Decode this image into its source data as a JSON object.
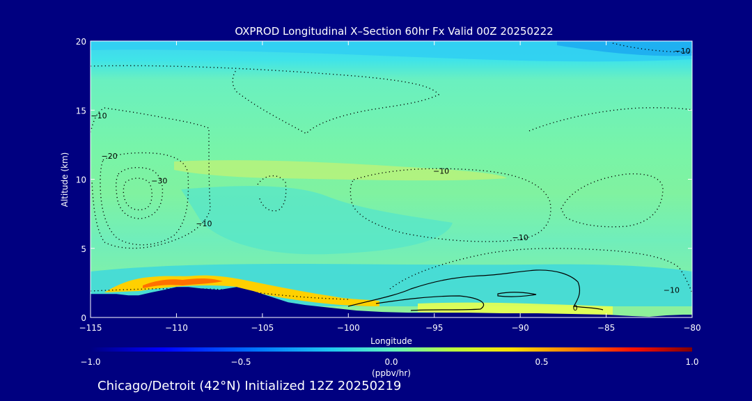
{
  "chart_data": {
    "type": "heatmap",
    "title": "OXPROD Longitudinal X–Section 60hr  Fx Valid 00Z 20250222",
    "xlabel": "Longitude",
    "ylabel": "Altitude (km)",
    "xlim": [
      -115,
      -80
    ],
    "ylim": [
      0,
      20
    ],
    "x_ticks": [
      -115,
      -110,
      -105,
      -100,
      -95,
      -90,
      -85,
      -80
    ],
    "x_tick_labels": [
      "−115",
      "−110",
      "−105",
      "−100",
      "−95",
      "−90",
      "−85",
      "−80"
    ],
    "y_ticks": [
      0,
      5,
      10,
      15,
      20
    ],
    "y_tick_labels": [
      "0",
      "5",
      "10",
      "15",
      "20"
    ],
    "colorbar": {
      "min": -1.0,
      "max": 1.0,
      "ticks": [
        -1.0,
        -0.5,
        0.0,
        0.5,
        1.0
      ],
      "tick_labels": [
        "−1.0",
        "−0.5",
        "0.0",
        "0.5",
        "1.0"
      ],
      "units": "(ppbv/hr)",
      "colors": [
        "#000080",
        "#0000ff",
        "#00a0ff",
        "#40e0e0",
        "#80ff80",
        "#ffff00",
        "#ff8000",
        "#ff0000",
        "#800000"
      ]
    },
    "contour_labels": [
      {
        "text": "−10",
        "lon": -79.8,
        "alt": 19.3
      },
      {
        "text": "−10",
        "lon": -114.6,
        "alt": 14.6
      },
      {
        "text": "−20",
        "lon": -113.9,
        "alt": 11.7
      },
      {
        "text": "−30",
        "lon": -111,
        "alt": 9.9
      },
      {
        "text": "−10",
        "lon": -108.4,
        "alt": 6.8
      },
      {
        "text": "−10",
        "lon": -94.6,
        "alt": 10.6
      },
      {
        "text": "−10",
        "lon": -90,
        "alt": 5.8
      },
      {
        "text": "−10",
        "lon": -81.2,
        "alt": 2.0
      },
      {
        "text": "0",
        "lon": -86.8,
        "alt": 0.7
      }
    ],
    "terrain": {
      "lon": [
        -115,
        -113.5,
        -112.8,
        -112.2,
        -111.5,
        -110.7,
        -110,
        -109.3,
        -108.6,
        -107.5,
        -106.5,
        -105.5,
        -104.5,
        -103.5,
        -102.5,
        -101,
        -99.5,
        -98,
        -96.5,
        -95,
        -93,
        -91,
        -89,
        -87,
        -85,
        -83.5,
        -82.5,
        -81.5,
        -80.5,
        -80
      ],
      "alt": [
        1.7,
        1.7,
        1.6,
        1.6,
        1.8,
        2.0,
        2.2,
        2.2,
        2.1,
        2.0,
        2.2,
        1.9,
        1.5,
        1.1,
        0.9,
        0.7,
        0.5,
        0.4,
        0.35,
        0.35,
        0.35,
        0.3,
        0.3,
        0.25,
        0.2,
        0.1,
        0.05,
        0.15,
        0.2,
        0.2
      ]
    }
  },
  "footer": {
    "text": "Chicago/Detroit (42°N) Initialized 12Z 20250219"
  }
}
